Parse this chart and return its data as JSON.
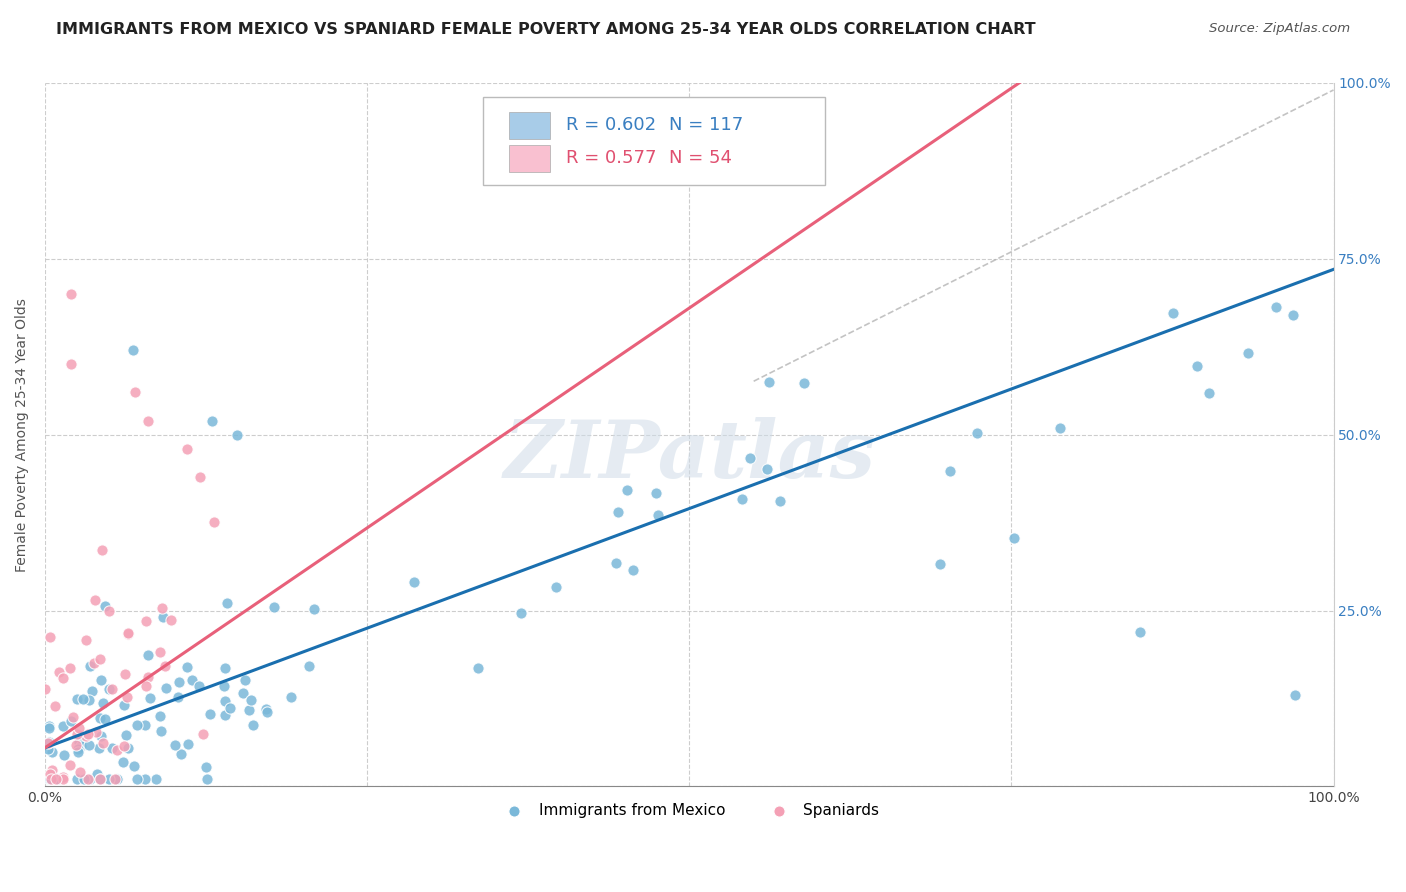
{
  "title": "IMMIGRANTS FROM MEXICO VS SPANIARD FEMALE POVERTY AMONG 25-34 YEAR OLDS CORRELATION CHART",
  "source": "Source: ZipAtlas.com",
  "ylabel": "Female Poverty Among 25-34 Year Olds",
  "xlim": [
    0,
    1
  ],
  "ylim": [
    0,
    1
  ],
  "xticks": [
    0.0,
    0.25,
    0.5,
    0.75,
    1.0
  ],
  "xticklabels": [
    "0.0%",
    "",
    "",
    "",
    "100.0%"
  ],
  "yticks": [
    0.0,
    0.25,
    0.5,
    0.75,
    1.0
  ],
  "yticklabels_right": [
    "",
    "25.0%",
    "50.0%",
    "75.0%",
    "100.0%"
  ],
  "legend_r1": "R = 0.602",
  "legend_n1": "N = 117",
  "legend_r2": "R = 0.577",
  "legend_n2": "N = 54",
  "blue_color": "#7ab8d9",
  "pink_color": "#f4a0b5",
  "blue_line_color": "#1a6faf",
  "pink_line_color": "#e8607a",
  "watermark": "ZIPatlas",
  "blue_legend_color": "#a8cce8",
  "pink_legend_color": "#f9c0d0",
  "legend_text_blue": "#3a7fc1",
  "legend_text_pink": "#e05070",
  "title_fontsize": 11.5,
  "axis_tick_fontsize": 10,
  "legend_fontsize": 13,
  "source_fontsize": 9.5
}
